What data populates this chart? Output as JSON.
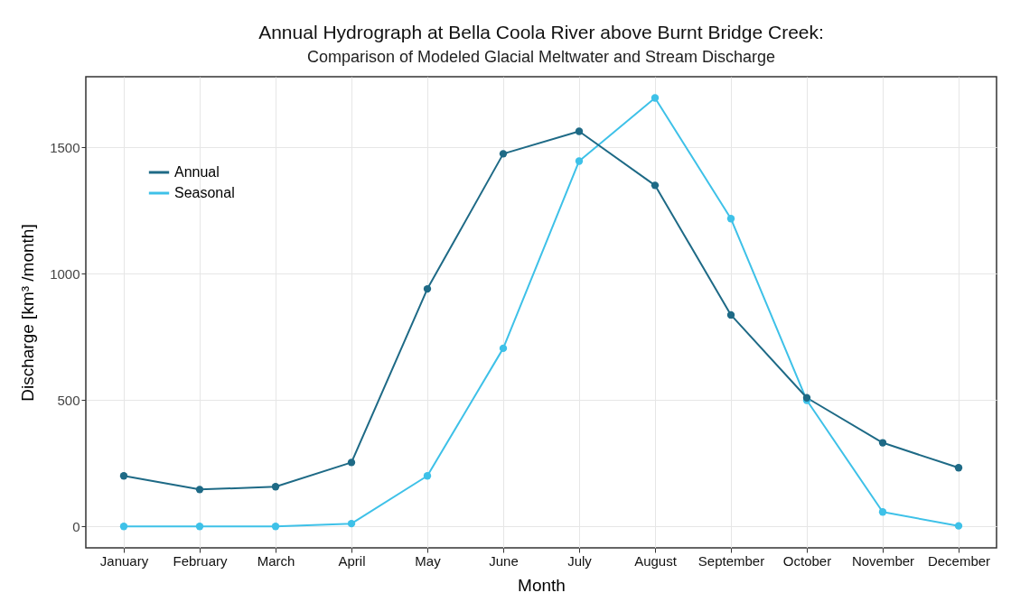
{
  "chart_data": {
    "type": "line",
    "title": "Annual Hydrograph at Bella Coola River above Burnt Bridge Creek:",
    "subtitle": "Comparison of Modeled Glacial Meltwater and Stream Discharge",
    "xlabel": "Month",
    "ylabel": "Discharge  [km³ /month]",
    "categories": [
      "January",
      "February",
      "March",
      "April",
      "May",
      "June",
      "July",
      "August",
      "September",
      "October",
      "November",
      "December"
    ],
    "series": [
      {
        "name": "Annual",
        "color": "#1e6a86",
        "values": [
          200,
          146,
          157,
          253,
          940,
          1475,
          1564,
          1350,
          837,
          509,
          331,
          232
        ]
      },
      {
        "name": "Seasonal",
        "color": "#3ec1e8",
        "values": [
          0,
          0,
          0,
          11,
          200,
          705,
          1446,
          1696,
          1218,
          499,
          57,
          2
        ]
      }
    ],
    "ylim": [
      -85,
      1780
    ],
    "yticks": [
      0,
      500,
      1000,
      1500
    ],
    "grid": true,
    "legend": "top left",
    "marker": "circle",
    "line_style": "solid"
  }
}
